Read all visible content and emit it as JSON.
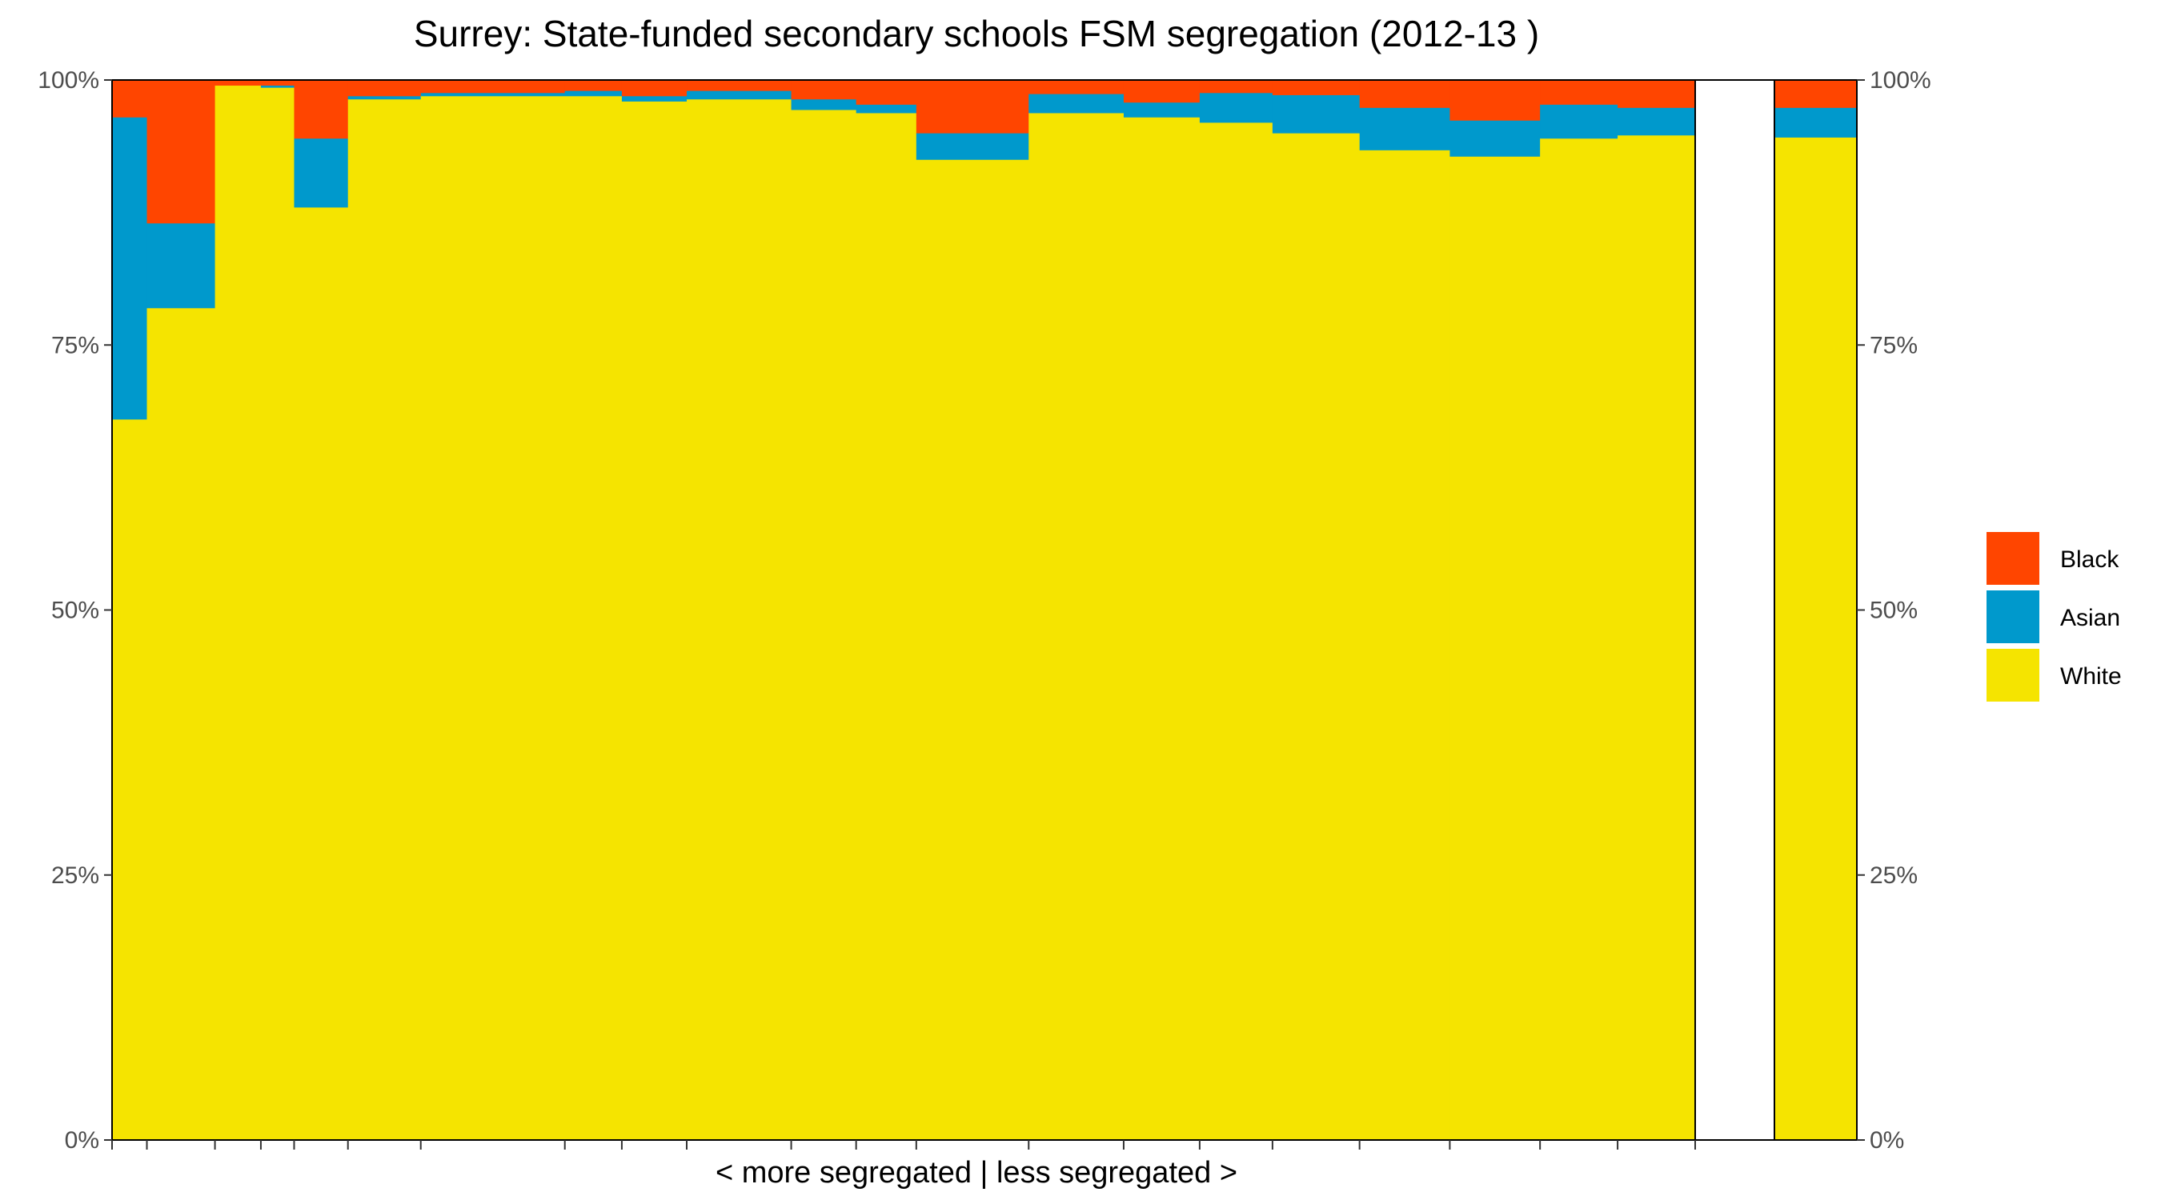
{
  "chart_data": {
    "type": "bar",
    "stacked": true,
    "variable_width": true,
    "title": "Surrey: State-funded secondary schools FSM segregation (2012-13 )",
    "xlabel": "< more segregated | less segregated >",
    "ylabel": "",
    "ylim": [
      0,
      100
    ],
    "y_ticks": [
      "0%",
      "25%",
      "50%",
      "75%",
      "100%"
    ],
    "y_ticks_right": [
      "0%",
      "25%",
      "50%",
      "75%",
      "100%"
    ],
    "grid": false,
    "legend_position": "right",
    "series": [
      {
        "name": "Black",
        "color": "#FF4500"
      },
      {
        "name": "Asian",
        "color": "#0099CC"
      },
      {
        "name": "White",
        "color": "#F5E400"
      }
    ],
    "x_range": [
      0,
      1
    ],
    "groups": [
      {
        "x": [
          0.0,
          0.022
        ],
        "white": 68.0,
        "asian": 28.5,
        "black": 3.5
      },
      {
        "x": [
          0.022,
          0.065
        ],
        "white": 78.5,
        "asian": 8.0,
        "black": 13.5
      },
      {
        "x": [
          0.065,
          0.094
        ],
        "white": 99.5,
        "asian": 0.0,
        "black": 0.5
      },
      {
        "x": [
          0.094,
          0.115
        ],
        "white": 99.3,
        "asian": 0.2,
        "black": 0.5
      },
      {
        "x": [
          0.115,
          0.149
        ],
        "white": 88.0,
        "asian": 6.5,
        "black": 5.5
      },
      {
        "x": [
          0.149,
          0.195
        ],
        "white": 98.2,
        "asian": 0.3,
        "black": 1.5
      },
      {
        "x": [
          0.195,
          0.286
        ],
        "white": 98.5,
        "asian": 0.3,
        "black": 1.2
      },
      {
        "x": [
          0.286,
          0.322
        ],
        "white": 98.5,
        "asian": 0.5,
        "black": 1.0
      },
      {
        "x": [
          0.322,
          0.363
        ],
        "white": 98.0,
        "asian": 0.5,
        "black": 1.5
      },
      {
        "x": [
          0.363,
          0.429
        ],
        "white": 98.2,
        "asian": 0.8,
        "black": 1.0
      },
      {
        "x": [
          0.429,
          0.47
        ],
        "white": 97.2,
        "asian": 1.0,
        "black": 1.8
      },
      {
        "x": [
          0.47,
          0.508
        ],
        "white": 96.9,
        "asian": 0.8,
        "black": 2.3
      },
      {
        "x": [
          0.508,
          0.579
        ],
        "white": 92.5,
        "asian": 2.5,
        "black": 5.0
      },
      {
        "x": [
          0.579,
          0.639
        ],
        "white": 96.9,
        "asian": 1.8,
        "black": 1.3
      },
      {
        "x": [
          0.639,
          0.687
        ],
        "white": 96.5,
        "asian": 1.4,
        "black": 2.1
      },
      {
        "x": [
          0.687,
          0.733
        ],
        "white": 96.0,
        "asian": 2.8,
        "black": 1.2
      },
      {
        "x": [
          0.733,
          0.788
        ],
        "white": 95.0,
        "asian": 3.6,
        "black": 1.4
      },
      {
        "x": [
          0.788,
          0.845
        ],
        "white": 93.4,
        "asian": 4.0,
        "black": 2.6
      },
      {
        "x": [
          0.845,
          0.902
        ],
        "white": 92.8,
        "asian": 3.4,
        "black": 3.8
      },
      {
        "x": [
          0.902,
          0.951
        ],
        "white": 94.5,
        "asian": 3.2,
        "black": 2.3
      },
      {
        "x": [
          0.951,
          1.0
        ],
        "white": 94.8,
        "asian": 2.6,
        "black": 2.6
      }
    ],
    "overall": {
      "white": 94.6,
      "asian": 2.8,
      "black": 2.6
    }
  }
}
